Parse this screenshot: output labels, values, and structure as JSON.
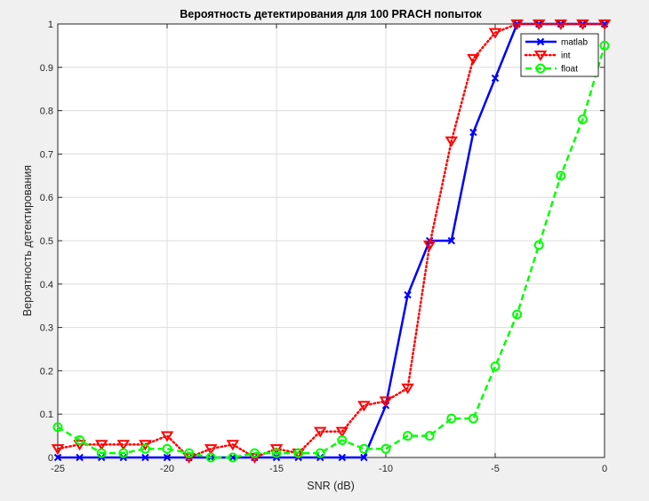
{
  "chart_data": {
    "type": "line",
    "title": "Вероятность детектирования для 100 PRACH попыток",
    "xlabel": "SNR (dB)",
    "ylabel": "Вероятность детектирования",
    "xlim": [
      -25,
      0
    ],
    "ylim": [
      0,
      1
    ],
    "xticks": [
      -25,
      -20,
      -15,
      -10,
      -5,
      0
    ],
    "yticks": [
      0,
      0.1,
      0.2,
      0.3,
      0.4,
      0.5,
      0.6,
      0.7,
      0.8,
      0.9,
      1
    ],
    "grid": true,
    "legend_position": "top-right",
    "x": [
      -25,
      -24,
      -23,
      -22,
      -21,
      -20,
      -19,
      -18,
      -17,
      -16,
      -15,
      -14,
      -13,
      -12,
      -11,
      -10,
      -9,
      -8,
      -7,
      -6,
      -5,
      -4,
      -3,
      -2,
      -1,
      0
    ],
    "series": [
      {
        "name": "matlab",
        "color": "#0000ff",
        "line_style": "solid",
        "marker": "x",
        "values": [
          0,
          0,
          0,
          0,
          0,
          0,
          0,
          0,
          0,
          0,
          0,
          0,
          0,
          0,
          0,
          0.12,
          0.375,
          0.5,
          0.5,
          0.75,
          0.875,
          1,
          1,
          1,
          1,
          1
        ]
      },
      {
        "name": "int",
        "color": "#ff0000",
        "line_style": "dotted",
        "marker": "triangle-down",
        "values": [
          0.02,
          0.03,
          0.03,
          0.03,
          0.03,
          0.05,
          0.0,
          0.02,
          0.03,
          0.0,
          0.02,
          0.01,
          0.06,
          0.06,
          0.12,
          0.13,
          0.16,
          0.49,
          0.73,
          0.92,
          0.98,
          1,
          1,
          1,
          1,
          1
        ]
      },
      {
        "name": "float",
        "color": "#00ff00",
        "line_style": "dashed",
        "marker": "circle",
        "values": [
          0.07,
          0.04,
          0.01,
          0.01,
          0.02,
          0.02,
          0.01,
          0.0,
          0.0,
          0.01,
          0.01,
          0.01,
          0.01,
          0.04,
          0.02,
          0.02,
          0.05,
          0.05,
          0.09,
          0.09,
          0.21,
          0.33,
          0.49,
          0.65,
          0.78,
          0.95
        ]
      }
    ]
  }
}
